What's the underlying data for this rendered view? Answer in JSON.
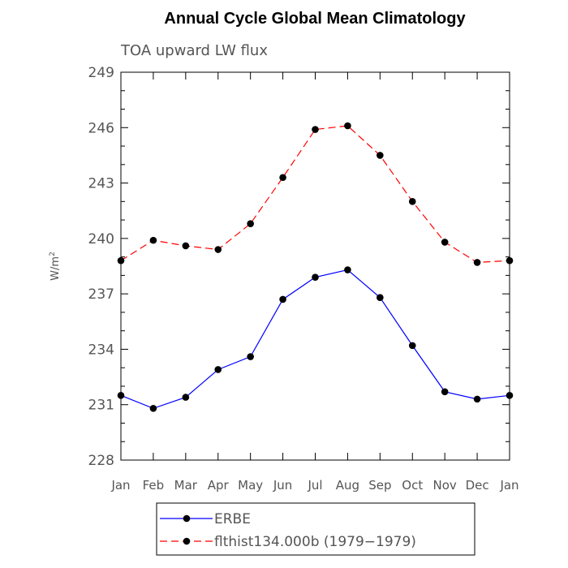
{
  "chart_data": {
    "type": "line",
    "title": "Annual Cycle Global Mean Climatology",
    "subtitle": "TOA upward LW flux",
    "xlabel": "",
    "ylabel": "W/m",
    "ylabel_superscript": "2",
    "categories": [
      "Jan",
      "Feb",
      "Mar",
      "Apr",
      "May",
      "Jun",
      "Jul",
      "Aug",
      "Sep",
      "Oct",
      "Nov",
      "Dec",
      "Jan"
    ],
    "ylim": [
      228,
      249
    ],
    "yticks": [
      228,
      231,
      234,
      237,
      240,
      243,
      246,
      249
    ],
    "grid": false,
    "legend_position": "bottom",
    "series": [
      {
        "name": "ERBE",
        "color": "#0000ff",
        "dash": "solid",
        "marker": "filled-circle",
        "values": [
          231.5,
          230.8,
          231.4,
          232.9,
          233.6,
          236.7,
          237.9,
          238.3,
          236.8,
          234.2,
          231.7,
          231.3,
          231.5
        ]
      },
      {
        "name": "flthist134.000b (1979−1979)",
        "color": "#ff0000",
        "dash": "dashed",
        "marker": "filled-circle",
        "values": [
          238.8,
          239.9,
          239.6,
          239.4,
          240.8,
          243.3,
          245.9,
          246.1,
          244.5,
          242.0,
          239.8,
          238.7,
          238.8
        ]
      }
    ]
  }
}
